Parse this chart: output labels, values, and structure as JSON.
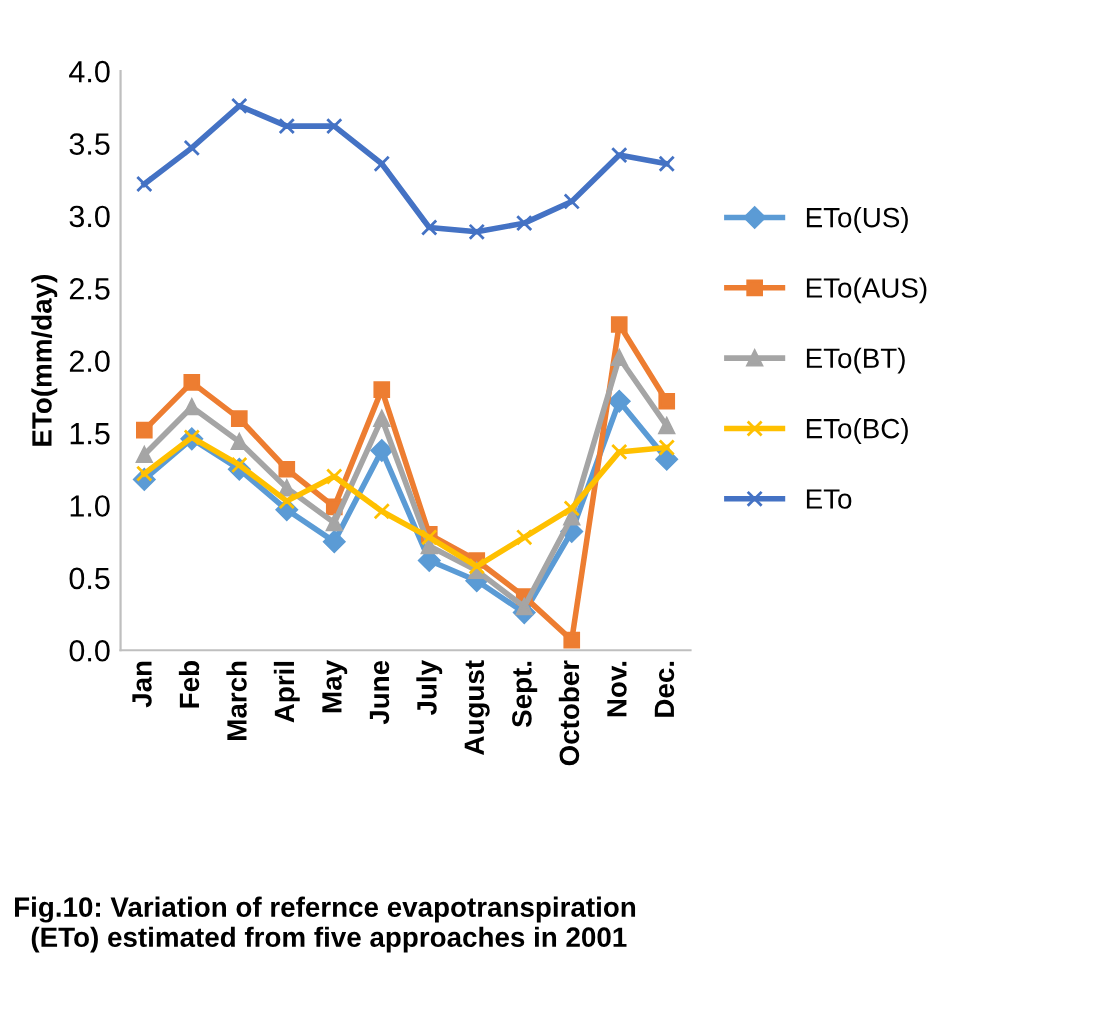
{
  "chart_data": {
    "type": "line",
    "ylabel": "ETo(mm/day)",
    "categories": [
      "Jan",
      "Feb",
      "March",
      "April",
      "May",
      "June",
      "July",
      "August",
      "Sept.",
      "October",
      "Nov.",
      "Dec."
    ],
    "series": [
      {
        "name": "ETo(US)",
        "color": "#5b9bd5",
        "marker": "diamond",
        "values": [
          1.18,
          1.46,
          1.25,
          0.97,
          0.75,
          1.38,
          0.62,
          0.48,
          0.26,
          0.82,
          1.72,
          1.32
        ]
      },
      {
        "name": "ETo(AUS)",
        "color": "#ed7d31",
        "marker": "square",
        "values": [
          1.52,
          1.85,
          1.6,
          1.25,
          0.99,
          1.8,
          0.8,
          0.62,
          0.37,
          0.07,
          2.25,
          1.72
        ]
      },
      {
        "name": "ETo(BT)",
        "color": "#a5a5a5",
        "marker": "triangle",
        "values": [
          1.35,
          1.68,
          1.44,
          1.12,
          0.88,
          1.6,
          0.72,
          0.55,
          0.3,
          0.92,
          2.02,
          1.55
        ]
      },
      {
        "name": "ETo(BC)",
        "color": "#ffc000",
        "marker": "cross",
        "values": [
          1.22,
          1.47,
          1.28,
          1.03,
          1.2,
          0.96,
          0.78,
          0.58,
          0.78,
          0.98,
          1.37,
          1.4
        ]
      },
      {
        "name": "ETo",
        "color": "#4472c4",
        "marker": "cross",
        "values": [
          3.22,
          3.47,
          3.76,
          3.62,
          3.62,
          3.36,
          2.92,
          2.89,
          2.95,
          3.1,
          3.42,
          3.36
        ]
      }
    ],
    "ylim": [
      0,
      4
    ],
    "yticks": [
      {
        "value": 0,
        "label": "0.0"
      },
      0.5,
      {
        "value": 1,
        "label": "1.0"
      },
      1.5,
      {
        "value": 2,
        "label": "2.0"
      },
      2.5,
      {
        "value": 3,
        "label": "3.0"
      },
      3.5,
      {
        "value": 4,
        "label": "4.0"
      }
    ],
    "grid": false,
    "legend": "right",
    "line_style": "solid",
    "annotations": [
      "Fig.10: Variation of refernce evapotranspiration  (ETo) estimated from five approaches in 2001"
    ]
  }
}
